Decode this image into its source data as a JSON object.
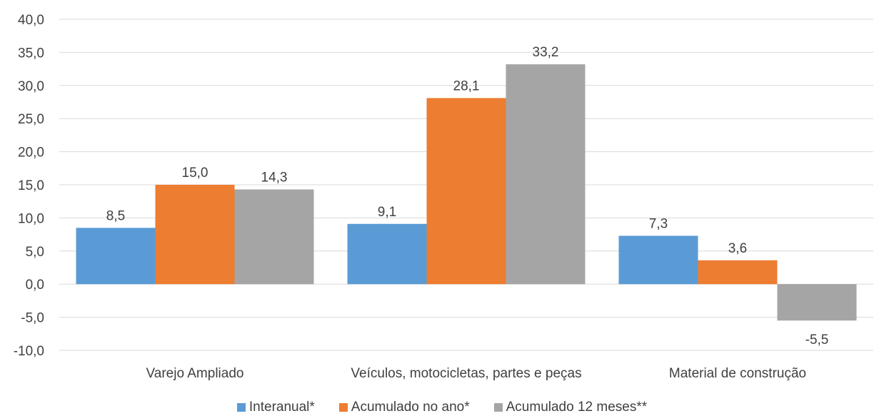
{
  "chart_data": {
    "type": "bar",
    "title": "",
    "xlabel": "",
    "ylabel": "",
    "categories": [
      "Varejo Ampliado",
      "Veículos, motocicletas, partes e peças",
      "Material de construção"
    ],
    "series": [
      {
        "name": "Interanual*",
        "color": "#5b9bd5",
        "values": [
          8.5,
          9.1,
          7.3
        ],
        "labels": [
          "8,5",
          "9,1",
          "7,3"
        ]
      },
      {
        "name": "Acumulado no ano*",
        "color": "#ed7d31",
        "values": [
          15.0,
          28.1,
          3.6
        ],
        "labels": [
          "15,0",
          "28,1",
          "3,6"
        ]
      },
      {
        "name": "Acumulado 12 meses**",
        "color": "#a5a5a5",
        "values": [
          14.3,
          33.2,
          -5.5
        ],
        "labels": [
          "14,3",
          "33,2",
          "-5,5"
        ]
      }
    ],
    "ylim": [
      -10,
      40
    ],
    "yticks": [
      -10,
      -5,
      0,
      5,
      10,
      15,
      20,
      25,
      30,
      35,
      40
    ],
    "ytick_labels": [
      "-10,0",
      "-5,0",
      "0,0",
      "5,0",
      "10,0",
      "15,0",
      "20,0",
      "25,0",
      "30,0",
      "35,0",
      "40,0"
    ],
    "grid": true,
    "legend_position": "bottom"
  }
}
